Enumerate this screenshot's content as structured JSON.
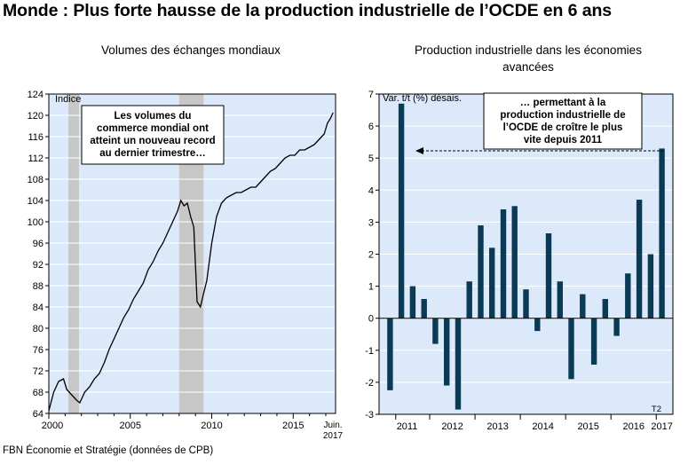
{
  "page": {
    "title": "Monde : Plus forte hausse de la production industrielle de l’OCDE en 6 ans",
    "source": "FBN Économie et Stratégie (données de CPB)"
  },
  "colors": {
    "panel_bg": "#dbe9fb",
    "bar": "#0b3a55",
    "line": "#000000",
    "recession": "#c7c7c7"
  },
  "chart_data": [
    {
      "type": "line",
      "title": "Volumes des échanges mondiaux",
      "ylabel": "Indice",
      "ylim": [
        64,
        124
      ],
      "yticks": [
        64,
        68,
        72,
        76,
        80,
        84,
        88,
        92,
        96,
        100,
        104,
        108,
        112,
        116,
        120,
        124
      ],
      "xlim": [
        2000,
        2017.6
      ],
      "xticks": [
        {
          "value": 2000,
          "label": "2000"
        },
        {
          "value": 2005,
          "label": "2005"
        },
        {
          "value": 2010,
          "label": "2010"
        },
        {
          "value": 2015,
          "label": "2015"
        }
      ],
      "last_label_line1": "Juin.",
      "last_label_line2": "2017",
      "shaded_periods": [
        [
          2001.2,
          2001.85
        ],
        [
          2008.0,
          2009.5
        ]
      ],
      "grid": true,
      "annotation": {
        "line1": "Les volumes du",
        "line2": "commerce mondial ont",
        "line3": "atteint un nouveau record",
        "line4": "au dernier trimestre…"
      },
      "series": [
        {
          "x": [
            2000.0,
            2000.3,
            2000.6,
            2000.9,
            2001.1,
            2001.4,
            2001.7,
            2001.9,
            2002.2,
            2002.5,
            2002.8,
            2003.1,
            2003.4,
            2003.7,
            2004.0,
            2004.3,
            2004.6,
            2004.9,
            2005.2,
            2005.5,
            2005.8,
            2006.1,
            2006.4,
            2006.7,
            2007.0,
            2007.3,
            2007.6,
            2007.9,
            2008.1,
            2008.3,
            2008.5,
            2008.7,
            2008.9,
            2009.1,
            2009.3,
            2009.5,
            2009.7,
            2010.0,
            2010.3,
            2010.6,
            2010.9,
            2011.2,
            2011.5,
            2011.8,
            2012.1,
            2012.4,
            2012.7,
            2013.0,
            2013.3,
            2013.6,
            2013.9,
            2014.2,
            2014.5,
            2014.8,
            2015.1,
            2015.4,
            2015.7,
            2016.0,
            2016.3,
            2016.6,
            2016.9,
            2017.1,
            2017.3,
            2017.45
          ],
          "values": [
            64.5,
            68.0,
            70.0,
            70.5,
            68.5,
            67.5,
            66.5,
            66.0,
            68.0,
            69.0,
            70.5,
            71.5,
            73.5,
            76.0,
            78.0,
            80.0,
            82.0,
            83.5,
            85.5,
            87.0,
            88.5,
            91.0,
            92.5,
            94.5,
            96.0,
            98.0,
            100.0,
            102.0,
            104.0,
            103.0,
            103.5,
            101.0,
            99.0,
            85.0,
            84.0,
            86.5,
            89.0,
            96.0,
            101.0,
            103.5,
            104.5,
            105.0,
            105.5,
            105.5,
            106.0,
            106.5,
            106.5,
            107.5,
            108.5,
            109.5,
            110.0,
            111.0,
            112.0,
            112.5,
            112.5,
            113.5,
            113.5,
            114.0,
            114.5,
            115.5,
            116.5,
            118.5,
            119.5,
            120.5
          ]
        }
      ]
    },
    {
      "type": "bar",
      "title_line1": "Production industrielle dans les économies",
      "title_line2": "avancées",
      "ylabel": "Var. t/t (%) désais.",
      "ylim": [
        -3,
        7
      ],
      "yticks": [
        -3,
        -2,
        -1,
        0,
        1,
        2,
        3,
        4,
        5,
        6,
        7
      ],
      "year_labels": [
        "2011",
        "2012",
        "2013",
        "2014",
        "2015",
        "2016",
        "2017"
      ],
      "corner_label": "T2",
      "grid": true,
      "annotation": {
        "line1": "… permettant à la",
        "line2": "production industrielle de",
        "line3": "l’OCDE de croître le plus",
        "line4": "vite depuis 2011"
      },
      "series": [
        {
          "values": [
            -2.25,
            6.7,
            1.0,
            0.6,
            -0.8,
            -2.1,
            -2.85,
            1.15,
            2.9,
            2.2,
            3.4,
            3.5,
            0.9,
            -0.4,
            2.65,
            1.15,
            -1.9,
            0.75,
            -1.45,
            0.6,
            -0.55,
            1.4,
            3.7,
            2.0,
            5.3
          ]
        }
      ]
    }
  ]
}
